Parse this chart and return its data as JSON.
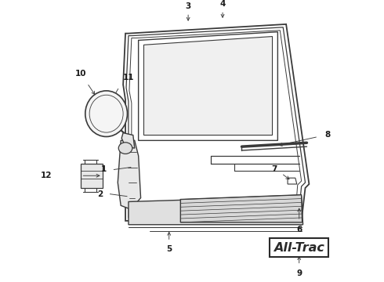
{
  "bg_color": "#ffffff",
  "line_color": "#3a3a3a",
  "label_color": "#1a1a1a",
  "figsize": [
    4.9,
    3.6
  ],
  "dpi": 100,
  "xlim": [
    0,
    490
  ],
  "ylim": [
    0,
    360
  ]
}
